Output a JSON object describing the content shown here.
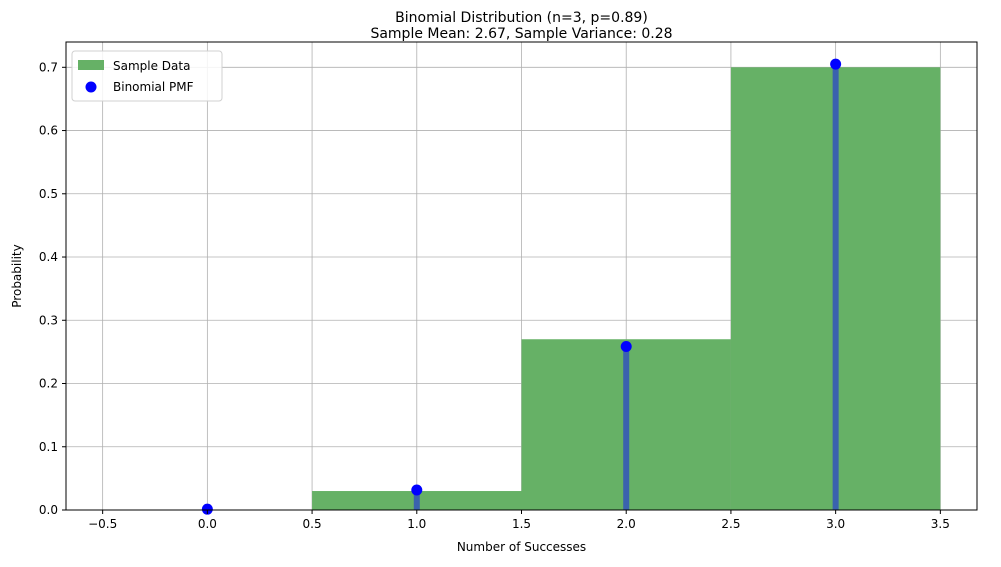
{
  "chart_data": {
    "type": "bar",
    "title_line1": "Binomial Distribution (n=3, p=0.89)",
    "title_line2": "Sample Mean: 2.67, Sample Variance: 0.28",
    "xlabel": "Number of Successes",
    "ylabel": "Probability",
    "xlim": [
      -0.675,
      3.675
    ],
    "ylim": [
      0,
      0.74
    ],
    "grid": true,
    "x_ticks": [
      -0.5,
      0.0,
      0.5,
      1.0,
      1.5,
      2.0,
      2.5,
      3.0,
      3.5
    ],
    "x_tick_labels": [
      "−0.5",
      "0.0",
      "0.5",
      "1.0",
      "1.5",
      "2.0",
      "2.5",
      "3.0",
      "3.5"
    ],
    "y_ticks": [
      0.0,
      0.1,
      0.2,
      0.3,
      0.4,
      0.5,
      0.6,
      0.7
    ],
    "y_tick_labels": [
      "0.0",
      "0.1",
      "0.2",
      "0.3",
      "0.4",
      "0.5",
      "0.6",
      "0.7"
    ],
    "legend": {
      "placement": "top-left",
      "entries": [
        {
          "label": "Sample Data",
          "kind": "patch",
          "color": "#66b166"
        },
        {
          "label": "Binomial PMF",
          "kind": "marker",
          "color": "#0000ff"
        }
      ]
    },
    "series": [
      {
        "name": "Sample Data",
        "type": "histogram",
        "color": "#66b166",
        "bins": [
          {
            "from": 0.5,
            "to": 1.5,
            "value": 0.03
          },
          {
            "from": 1.5,
            "to": 2.5,
            "value": 0.27
          },
          {
            "from": 2.5,
            "to": 3.5,
            "value": 0.7
          }
        ]
      },
      {
        "name": "Binomial PMF",
        "type": "stem",
        "marker_color": "#0000ff",
        "stem_color": "#3355bb",
        "x": [
          0,
          1,
          2,
          3
        ],
        "y": [
          0.0013,
          0.0317,
          0.2585,
          0.705
        ]
      }
    ]
  }
}
